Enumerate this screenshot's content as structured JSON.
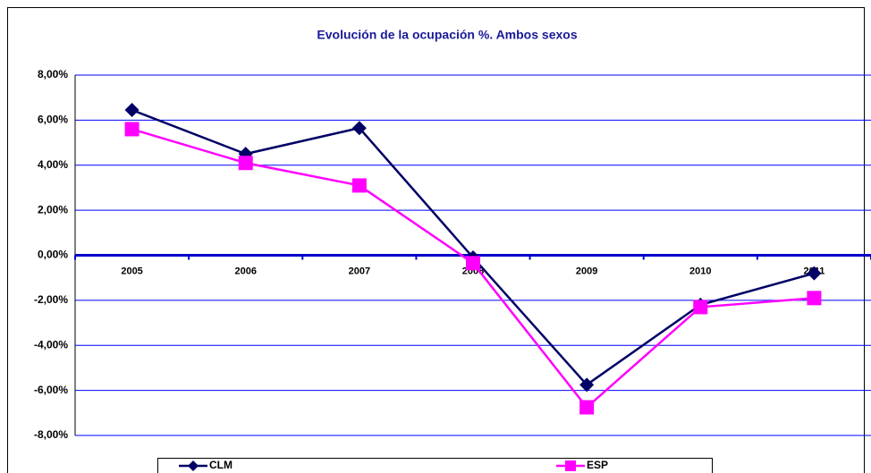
{
  "chart_data": {
    "type": "line",
    "title": "Evolución de la ocupación %. Ambos sexos",
    "categories": [
      "2005",
      "2006",
      "2007",
      "2008",
      "2009",
      "2010",
      "2011"
    ],
    "series": [
      {
        "name": "CLM",
        "color": "#000066",
        "marker": "diamond",
        "values": [
          6.45,
          4.5,
          5.65,
          -0.1,
          -5.75,
          -2.2,
          -0.8
        ]
      },
      {
        "name": "ESP",
        "color": "#ff00ff",
        "marker": "square",
        "values": [
          5.6,
          4.1,
          3.1,
          -0.35,
          -6.75,
          -2.3,
          -1.9
        ]
      }
    ],
    "ylim": [
      -8,
      8
    ],
    "yticks": [
      {
        "value": -8,
        "label": "-8,00%"
      },
      {
        "value": -6,
        "label": "-6,00%"
      },
      {
        "value": -4,
        "label": "-4,00%"
      },
      {
        "value": -2,
        "label": "-2,00%"
      },
      {
        "value": 0,
        "label": "0,00%"
      },
      {
        "value": 2,
        "label": "2,00%"
      },
      {
        "value": 4,
        "label": "4,00%"
      },
      {
        "value": 6,
        "label": "6,00%"
      },
      {
        "value": 8,
        "label": "8,00%"
      }
    ],
    "grid": true,
    "legend": "bottom"
  }
}
